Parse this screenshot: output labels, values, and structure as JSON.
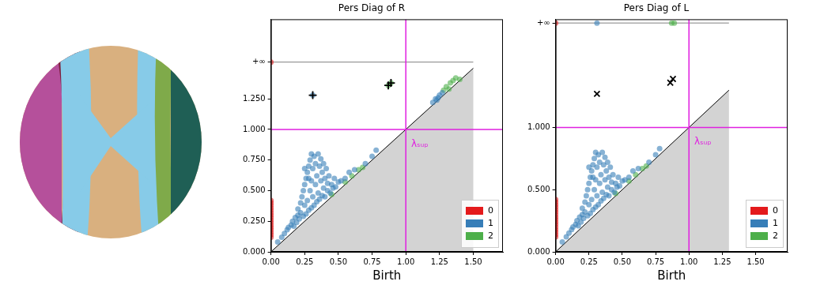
{
  "chart_data": [
    {
      "type": "scatter",
      "title": "Pers Diag of R",
      "x_label": "Birth",
      "grid": false,
      "legend": "lower right",
      "xlim": [
        0,
        1.72
      ],
      "ylim": [
        0,
        1.9
      ],
      "xticks": [
        {
          "value": 0,
          "label": "0.00"
        },
        {
          "value": 0.25,
          "label": "0.25"
        },
        {
          "value": 0.5,
          "label": "0.50"
        },
        {
          "value": 0.75,
          "label": "0.75"
        },
        {
          "value": 1,
          "label": "1.00"
        },
        {
          "value": 1.25,
          "label": "1.25"
        },
        {
          "value": 1.5,
          "label": "1.50"
        }
      ],
      "yticks": [
        {
          "value": 0,
          "label": "0.000"
        },
        {
          "value": 0.25,
          "label": "0.250"
        },
        {
          "value": 0.5,
          "label": "0.500"
        },
        {
          "value": 0.75,
          "label": "0.750"
        },
        {
          "value": 1,
          "label": "1.000"
        },
        {
          "value": 1.25,
          "label": "1.250"
        },
        {
          "value": 1.55,
          "label": "+∞"
        }
      ],
      "diagonal_end": 1.5,
      "inf_line": {
        "y": 1.55,
        "x_end": 1.5
      },
      "threshold": 1.0,
      "annotation": {
        "text": "λₛᵤₚ",
        "x": 1.04,
        "y": 0.88
      },
      "series": [
        {
          "name": "0",
          "color": "#e41a1c",
          "marker": "circle",
          "x": [
            0,
            0,
            0,
            0,
            0,
            0,
            0,
            0,
            0,
            0,
            0,
            0,
            0,
            0,
            0,
            0,
            0
          ],
          "values": [
            0.12,
            0.14,
            0.16,
            0.18,
            0.2,
            0.22,
            0.24,
            0.26,
            0.28,
            0.3,
            0.32,
            0.34,
            0.36,
            0.38,
            0.4,
            0.42,
            1.55
          ]
        },
        {
          "name": "1",
          "color": "#377eb8",
          "marker": "circle",
          "x": [
            0.05,
            0.08,
            0.1,
            0.12,
            0.13,
            0.15,
            0.16,
            0.17,
            0.18,
            0.19,
            0.2,
            0.2,
            0.21,
            0.22,
            0.22,
            0.23,
            0.24,
            0.24,
            0.25,
            0.25,
            0.26,
            0.26,
            0.27,
            0.27,
            0.28,
            0.28,
            0.29,
            0.29,
            0.3,
            0.3,
            0.3,
            0.31,
            0.31,
            0.32,
            0.32,
            0.33,
            0.33,
            0.34,
            0.34,
            0.35,
            0.35,
            0.36,
            0.36,
            0.37,
            0.37,
            0.38,
            0.38,
            0.39,
            0.39,
            0.4,
            0.4,
            0.41,
            0.42,
            0.42,
            0.43,
            0.44,
            0.45,
            0.46,
            0.47,
            0.48,
            0.5,
            0.52,
            0.55,
            0.58,
            0.62,
            0.7,
            0.75,
            0.78,
            0.25,
            0.28,
            0.31,
            1.2,
            1.22,
            1.23,
            1.24,
            1.25,
            1.27
          ],
          "values": [
            0.08,
            0.12,
            0.15,
            0.18,
            0.2,
            0.22,
            0.25,
            0.21,
            0.28,
            0.24,
            0.3,
            0.35,
            0.27,
            0.4,
            0.32,
            0.45,
            0.29,
            0.5,
            0.38,
            0.55,
            0.31,
            0.6,
            0.42,
            0.65,
            0.34,
            0.7,
            0.5,
            0.75,
            0.36,
            0.58,
            0.8,
            0.45,
            0.68,
            0.38,
            0.78,
            0.55,
            0.72,
            0.41,
            0.62,
            0.8,
            0.48,
            0.7,
            0.43,
            0.58,
            0.76,
            0.46,
            0.65,
            0.52,
            0.72,
            0.45,
            0.6,
            0.68,
            0.5,
            0.56,
            0.62,
            0.48,
            0.55,
            0.52,
            0.6,
            0.53,
            0.57,
            0.58,
            0.6,
            0.65,
            0.67,
            0.72,
            0.78,
            0.83,
            0.68,
            0.6,
            1.28,
            1.22,
            1.25,
            1.24,
            1.26,
            1.28,
            1.3
          ]
        },
        {
          "name": "2",
          "color": "#4daf4a",
          "marker": "circle",
          "x": [
            0.45,
            0.55,
            0.6,
            0.65,
            0.68,
            0.87,
            0.89,
            1.28,
            1.3,
            1.32,
            1.33,
            1.35,
            1.37,
            1.4
          ],
          "values": [
            0.47,
            0.57,
            0.62,
            0.67,
            0.69,
            1.36,
            1.38,
            1.32,
            1.35,
            1.33,
            1.38,
            1.4,
            1.42,
            1.41
          ]
        }
      ],
      "highlights": {
        "color": "#000000",
        "marker": "cross",
        "x": [
          0.31,
          0.87,
          0.89
        ],
        "values": [
          1.28,
          1.36,
          1.38
        ]
      }
    },
    {
      "type": "scatter",
      "title": "Pers Diag of L",
      "x_label": "Birth",
      "grid": false,
      "legend": "lower right",
      "xlim": [
        0,
        1.74
      ],
      "ylim": [
        0,
        1.87
      ],
      "xticks": [
        {
          "value": 0,
          "label": "0.00"
        },
        {
          "value": 0.25,
          "label": "0.25"
        },
        {
          "value": 0.5,
          "label": "0.50"
        },
        {
          "value": 0.75,
          "label": "0.75"
        },
        {
          "value": 1,
          "label": "1.00"
        },
        {
          "value": 1.25,
          "label": "1.25"
        },
        {
          "value": 1.5,
          "label": "1.50"
        }
      ],
      "yticks": [
        {
          "value": 0,
          "label": "0.000"
        },
        {
          "value": 0.5,
          "label": "0.500"
        },
        {
          "value": 1,
          "label": "1.000"
        },
        {
          "value": 1.84,
          "label": "+∞"
        }
      ],
      "diagonal_end": 1.3,
      "inf_line": {
        "y": 1.84,
        "x_end": 1.3
      },
      "threshold": 1.0,
      "annotation": {
        "text": "λₛᵤₚ",
        "x": 1.04,
        "y": 0.88
      },
      "series": [
        {
          "name": "0",
          "color": "#e41a1c",
          "marker": "circle",
          "x": [
            0,
            0,
            0,
            0,
            0,
            0,
            0,
            0,
            0,
            0,
            0,
            0,
            0,
            0,
            0,
            0,
            0
          ],
          "values": [
            0.12,
            0.14,
            0.16,
            0.18,
            0.2,
            0.22,
            0.24,
            0.26,
            0.28,
            0.3,
            0.32,
            0.34,
            0.36,
            0.38,
            0.4,
            0.42,
            1.84
          ]
        },
        {
          "name": "1",
          "color": "#377eb8",
          "marker": "circle",
          "x": [
            0.05,
            0.08,
            0.1,
            0.12,
            0.13,
            0.15,
            0.16,
            0.17,
            0.18,
            0.19,
            0.2,
            0.2,
            0.21,
            0.22,
            0.22,
            0.23,
            0.24,
            0.24,
            0.25,
            0.25,
            0.26,
            0.26,
            0.27,
            0.27,
            0.28,
            0.28,
            0.29,
            0.29,
            0.3,
            0.3,
            0.3,
            0.31,
            0.31,
            0.32,
            0.32,
            0.33,
            0.33,
            0.34,
            0.34,
            0.35,
            0.35,
            0.36,
            0.36,
            0.37,
            0.37,
            0.38,
            0.38,
            0.39,
            0.39,
            0.4,
            0.4,
            0.41,
            0.42,
            0.42,
            0.43,
            0.44,
            0.45,
            0.46,
            0.47,
            0.48,
            0.5,
            0.52,
            0.55,
            0.58,
            0.62,
            0.7,
            0.75,
            0.78,
            0.25,
            0.28,
            0.31
          ],
          "values": [
            0.08,
            0.12,
            0.15,
            0.18,
            0.2,
            0.22,
            0.25,
            0.21,
            0.28,
            0.24,
            0.3,
            0.35,
            0.27,
            0.4,
            0.32,
            0.45,
            0.29,
            0.5,
            0.38,
            0.55,
            0.31,
            0.6,
            0.42,
            0.65,
            0.34,
            0.7,
            0.5,
            0.75,
            0.36,
            0.58,
            0.8,
            0.45,
            0.68,
            0.38,
            0.78,
            0.55,
            0.72,
            0.41,
            0.62,
            0.8,
            0.48,
            0.7,
            0.43,
            0.58,
            0.76,
            0.46,
            0.65,
            0.52,
            0.72,
            0.45,
            0.6,
            0.68,
            0.5,
            0.56,
            0.62,
            0.48,
            0.55,
            0.52,
            0.6,
            0.53,
            0.57,
            0.58,
            0.6,
            0.65,
            0.67,
            0.72,
            0.78,
            0.83,
            0.68,
            0.6,
            1.84
          ]
        },
        {
          "name": "2",
          "color": "#4daf4a",
          "marker": "circle",
          "x": [
            0.45,
            0.55,
            0.6,
            0.65,
            0.68,
            0.87,
            0.89
          ],
          "values": [
            0.47,
            0.57,
            0.62,
            0.67,
            0.69,
            1.84,
            1.84
          ]
        }
      ],
      "highlights": {
        "color": "#000000",
        "marker": "x",
        "x": [
          0.31,
          0.86,
          0.88
        ],
        "values": [
          1.27,
          1.36,
          1.39
        ]
      }
    }
  ]
}
